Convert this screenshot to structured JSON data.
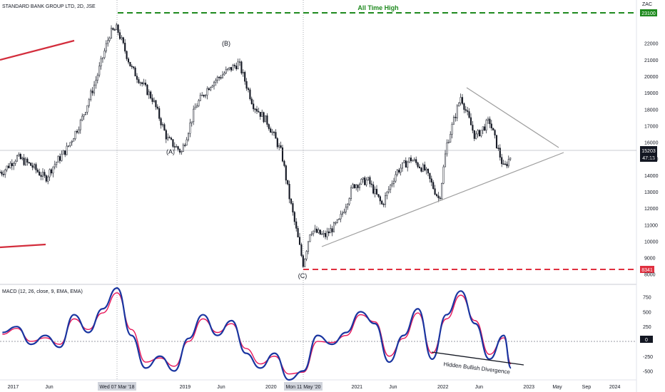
{
  "header": {
    "symbol_title": "STANDARD BANK GROUP LTD, 2D, JSE",
    "currency": "ZAC"
  },
  "indicator": {
    "title": "MACD (12, 26, close, 9, EMA, EMA)"
  },
  "annotations": {
    "all_time_high": "All Time High",
    "wave_a": "(A)",
    "wave_b": "(B)",
    "wave_c": "(C)",
    "hidden_divergence": "Hidden Bullish Divergence"
  },
  "price_tags": {
    "ath": "23100",
    "low": "8341",
    "last": "15203",
    "countdown": "47:13",
    "macd_zero": "0"
  },
  "crosshair_labels": {
    "peak_date": "Wed 07 Mar '18",
    "low_date": "Mon 11 May '20"
  },
  "colors": {
    "bull": "#26a69a",
    "bear": "#131722",
    "ath_line": "#1e8a1e",
    "low_line": "#e03040",
    "trend": "#9e9e9e",
    "macd_line": "#1a35a0",
    "signal_line": "#e8175a"
  },
  "chart_data": [
    {
      "type": "line",
      "title": "STANDARD BANK GROUP LTD, 2D, JSE",
      "ylabel": "ZAC",
      "ylim": [
        7600,
        23500
      ],
      "y_ticks": [
        8000,
        9000,
        10000,
        11000,
        12000,
        13000,
        14000,
        15000,
        16000,
        17000,
        18000,
        19000,
        20000,
        21000,
        22000
      ],
      "x_ticks": [
        "2017",
        "Jun",
        "2019",
        "Jun",
        "2020",
        "2021",
        "Jun",
        "2022",
        "Jun",
        "2023",
        "May",
        "Sep",
        "2024"
      ],
      "series": [
        {
          "x": [
            "2016-11",
            "2017-01",
            "2017-03",
            "2017-05",
            "2017-06",
            "2017-08",
            "2017-10",
            "2017-12",
            "2018-02",
            "2018-03",
            "2018-05",
            "2018-08",
            "2018-10",
            "2018-12",
            "2019-02",
            "2019-04",
            "2019-06",
            "2019-08",
            "2019-10",
            "2019-12",
            "2020-01",
            "2020-02",
            "2020-03",
            "2020-05",
            "2020-06",
            "2020-08",
            "2020-10",
            "2020-12",
            "2021-02",
            "2021-04",
            "2021-06",
            "2021-08",
            "2021-10",
            "2021-12",
            "2022-01",
            "2022-03",
            "2022-05",
            "2022-07",
            "2022-09",
            "2022-10"
          ],
          "values": [
            14200,
            15100,
            14600,
            13800,
            14500,
            15600,
            17300,
            19700,
            22600,
            22900,
            20500,
            18600,
            16200,
            15400,
            18200,
            19500,
            20200,
            20800,
            18300,
            17200,
            16300,
            15300,
            12800,
            8600,
            10700,
            10300,
            11200,
            13400,
            13700,
            12200,
            14200,
            15000,
            14300,
            12500,
            15800,
            18800,
            16300,
            17300,
            14400,
            15200
          ]
        }
      ],
      "horizontal_lines": [
        {
          "label": "All Time High",
          "value": 23100
        },
        {
          "value": 8341
        },
        {
          "value": 15203
        }
      ],
      "wave_labels": [
        {
          "label": "(A)",
          "value": 15300
        },
        {
          "label": "(B)",
          "value": 21100
        },
        {
          "label": "(C)",
          "value": 8400
        }
      ],
      "triangle": {
        "upper": [
          [
            "2022-03",
            18800
          ],
          [
            "2023-05",
            15600
          ]
        ],
        "lower": [
          [
            "2020-08",
            9700
          ],
          [
            "2023-06",
            15000
          ]
        ]
      }
    },
    {
      "type": "line",
      "title": "MACD (12, 26, close, 9, EMA, EMA)",
      "ylim": [
        -650,
        950
      ],
      "y_ticks": [
        -500,
        -250,
        0,
        250,
        500,
        750
      ],
      "series": [
        {
          "name": "MACD",
          "x": [
            "2016-11",
            "2017-01",
            "2017-03",
            "2017-05",
            "2017-07",
            "2017-09",
            "2017-11",
            "2018-01",
            "2018-03",
            "2018-05",
            "2018-07",
            "2018-09",
            "2018-11",
            "2019-01",
            "2019-03",
            "2019-05",
            "2019-07",
            "2019-09",
            "2019-11",
            "2020-01",
            "2020-03",
            "2020-05",
            "2020-07",
            "2020-09",
            "2020-11",
            "2021-01",
            "2021-03",
            "2021-05",
            "2021-07",
            "2021-09",
            "2021-11",
            "2022-01",
            "2022-03",
            "2022-05",
            "2022-07",
            "2022-09",
            "2022-10"
          ],
          "values": [
            150,
            250,
            -50,
            100,
            -100,
            450,
            150,
            550,
            900,
            100,
            -450,
            -250,
            -500,
            50,
            450,
            100,
            350,
            -200,
            -450,
            -200,
            -650,
            -500,
            100,
            -50,
            150,
            500,
            300,
            -350,
            100,
            550,
            -300,
            450,
            850,
            300,
            -300,
            100,
            -450
          ]
        },
        {
          "name": "Signal",
          "x": [
            "2016-11",
            "2017-01",
            "2017-03",
            "2017-05",
            "2017-07",
            "2017-09",
            "2017-11",
            "2018-01",
            "2018-03",
            "2018-05",
            "2018-07",
            "2018-09",
            "2018-11",
            "2019-01",
            "2019-03",
            "2019-05",
            "2019-07",
            "2019-09",
            "2019-11",
            "2020-01",
            "2020-03",
            "2020-05",
            "2020-07",
            "2020-09",
            "2020-11",
            "2021-01",
            "2021-03",
            "2021-05",
            "2021-07",
            "2021-09",
            "2021-11",
            "2022-01",
            "2022-03",
            "2022-05",
            "2022-07",
            "2022-09",
            "2022-10"
          ],
          "values": [
            120,
            220,
            0,
            60,
            -50,
            380,
            200,
            480,
            820,
            200,
            -350,
            -280,
            -420,
            0,
            380,
            150,
            300,
            -120,
            -380,
            -250,
            -550,
            -520,
            0,
            -20,
            100,
            450,
            330,
            -250,
            50,
            480,
            -200,
            380,
            780,
            350,
            -220,
            60,
            -380
          ]
        }
      ],
      "annotation": "Hidden Bullish Divergence"
    }
  ]
}
